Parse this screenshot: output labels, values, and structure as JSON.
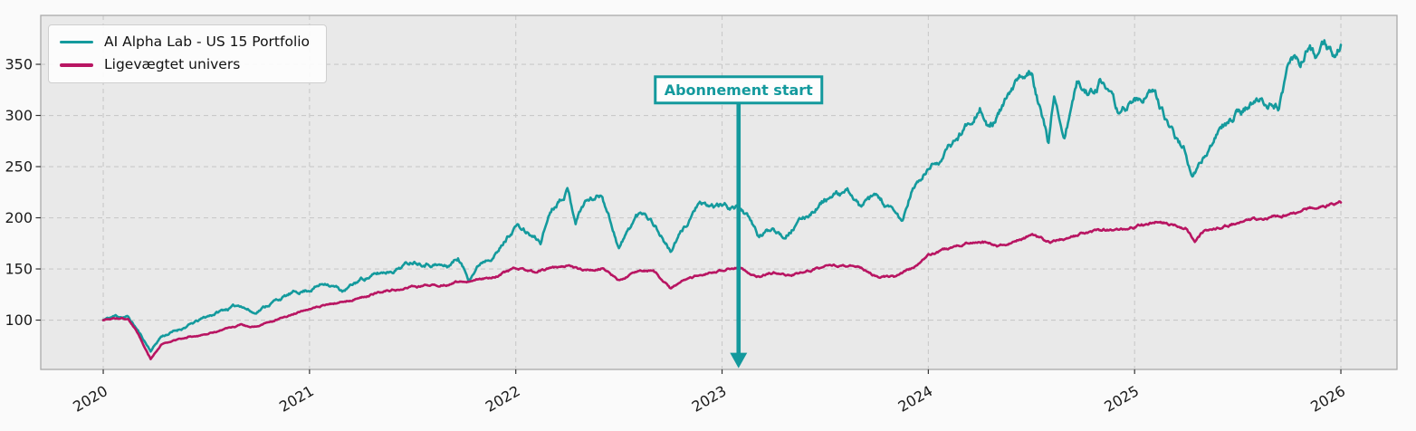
{
  "figure": {
    "background_color": "#fafafa",
    "plot_background_color": "#e9e9e9",
    "grid_color": "#c9c9c9",
    "spine_color": "#ababab",
    "tick_color": "#333333",
    "tick_label_color": "#1a1a1a"
  },
  "chart_data": {
    "type": "line",
    "title": "",
    "xlabel": "",
    "ylabel": "",
    "grid": "dashed",
    "legend_position": "upper-left",
    "xlim": [
      2019.697,
      2026.272
    ],
    "ylim": [
      51.8,
      397.8
    ],
    "x_ticks": [
      2020,
      2021,
      2022,
      2023,
      2024,
      2025,
      2026
    ],
    "x_tick_labels": [
      "2020",
      "2021",
      "2022",
      "2023",
      "2024",
      "2025",
      "2026"
    ],
    "y_ticks": [
      100,
      150,
      200,
      250,
      300,
      350
    ],
    "y_tick_labels": [
      "100",
      "150",
      "200",
      "250",
      "300",
      "350"
    ],
    "annotation": {
      "label": "Abonnement start",
      "x": 2023.08,
      "box_center_value": 325,
      "arrow_tip_value": 53,
      "color": "#13999d",
      "box_fill": "#fdfdfd"
    },
    "series": [
      {
        "name": "AI Alpha Lab - US 15 Portfolio",
        "color": "#149a9d",
        "visual_volatility": 0.018,
        "points": [
          [
            2020.0,
            100
          ],
          [
            2020.06,
            104
          ],
          [
            2020.12,
            103
          ],
          [
            2020.16,
            92
          ],
          [
            2020.23,
            70
          ],
          [
            2020.28,
            84
          ],
          [
            2020.333,
            88
          ],
          [
            2020.417,
            95
          ],
          [
            2020.5,
            103
          ],
          [
            2020.583,
            110
          ],
          [
            2020.667,
            115
          ],
          [
            2020.73,
            107
          ],
          [
            2020.833,
            119
          ],
          [
            2020.917,
            126
          ],
          [
            2021.0,
            130
          ],
          [
            2021.083,
            137
          ],
          [
            2021.167,
            128
          ],
          [
            2021.25,
            140
          ],
          [
            2021.333,
            145
          ],
          [
            2021.417,
            150
          ],
          [
            2021.5,
            158
          ],
          [
            2021.583,
            156
          ],
          [
            2021.667,
            152
          ],
          [
            2021.72,
            161
          ],
          [
            2021.77,
            141
          ],
          [
            2021.833,
            157
          ],
          [
            2021.917,
            168
          ],
          [
            2022.0,
            193
          ],
          [
            2022.083,
            181
          ],
          [
            2022.12,
            176
          ],
          [
            2022.167,
            207
          ],
          [
            2022.25,
            229
          ],
          [
            2022.29,
            198
          ],
          [
            2022.333,
            216
          ],
          [
            2022.42,
            223
          ],
          [
            2022.5,
            171
          ],
          [
            2022.583,
            201
          ],
          [
            2022.625,
            206
          ],
          [
            2022.667,
            196
          ],
          [
            2022.75,
            167
          ],
          [
            2022.79,
            181
          ],
          [
            2022.833,
            195
          ],
          [
            2022.88,
            213
          ],
          [
            2022.917,
            210
          ],
          [
            2023.0,
            212
          ],
          [
            2023.1,
            209
          ],
          [
            2023.18,
            181
          ],
          [
            2023.25,
            191
          ],
          [
            2023.3,
            183
          ],
          [
            2023.417,
            203
          ],
          [
            2023.5,
            218
          ],
          [
            2023.62,
            225
          ],
          [
            2023.667,
            211
          ],
          [
            2023.75,
            220
          ],
          [
            2023.875,
            196
          ],
          [
            2023.917,
            225
          ],
          [
            2024.0,
            247
          ],
          [
            2024.083,
            263
          ],
          [
            2024.167,
            285
          ],
          [
            2024.25,
            310
          ],
          [
            2024.29,
            286
          ],
          [
            2024.333,
            298
          ],
          [
            2024.417,
            327
          ],
          [
            2024.5,
            347
          ],
          [
            2024.583,
            272
          ],
          [
            2024.61,
            320
          ],
          [
            2024.66,
            279
          ],
          [
            2024.72,
            330
          ],
          [
            2024.78,
            322
          ],
          [
            2024.833,
            334
          ],
          [
            2024.917,
            303
          ],
          [
            2025.0,
            315
          ],
          [
            2025.1,
            321
          ],
          [
            2025.167,
            287
          ],
          [
            2025.25,
            265
          ],
          [
            2025.28,
            241
          ],
          [
            2025.333,
            257
          ],
          [
            2025.417,
            288
          ],
          [
            2025.5,
            303
          ],
          [
            2025.583,
            313
          ],
          [
            2025.667,
            312
          ],
          [
            2025.7,
            308
          ],
          [
            2025.76,
            357
          ],
          [
            2025.8,
            352
          ],
          [
            2025.85,
            368
          ],
          [
            2025.88,
            355
          ],
          [
            2025.92,
            366
          ],
          [
            2025.96,
            358
          ],
          [
            2026.0,
            369
          ]
        ]
      },
      {
        "name": "Ligevægtet univers",
        "color": "#b81562",
        "visual_volatility": 0.01,
        "points": [
          [
            2020.0,
            100
          ],
          [
            2020.06,
            102
          ],
          [
            2020.12,
            101
          ],
          [
            2020.16,
            90
          ],
          [
            2020.23,
            62
          ],
          [
            2020.28,
            76
          ],
          [
            2020.333,
            79
          ],
          [
            2020.417,
            84
          ],
          [
            2020.5,
            86
          ],
          [
            2020.583,
            91
          ],
          [
            2020.667,
            95
          ],
          [
            2020.73,
            93
          ],
          [
            2020.833,
            100
          ],
          [
            2020.917,
            106
          ],
          [
            2021.0,
            112
          ],
          [
            2021.083,
            115
          ],
          [
            2021.167,
            118
          ],
          [
            2021.25,
            122
          ],
          [
            2021.333,
            127
          ],
          [
            2021.417,
            130
          ],
          [
            2021.5,
            132
          ],
          [
            2021.583,
            134
          ],
          [
            2021.667,
            135
          ],
          [
            2021.75,
            138
          ],
          [
            2021.833,
            141
          ],
          [
            2021.917,
            144
          ],
          [
            2022.0,
            150
          ],
          [
            2022.083,
            147
          ],
          [
            2022.167,
            150
          ],
          [
            2022.25,
            153
          ],
          [
            2022.333,
            148
          ],
          [
            2022.417,
            151
          ],
          [
            2022.5,
            139
          ],
          [
            2022.583,
            147
          ],
          [
            2022.667,
            149
          ],
          [
            2022.75,
            131
          ],
          [
            2022.833,
            141
          ],
          [
            2022.917,
            146
          ],
          [
            2023.0,
            148
          ],
          [
            2023.083,
            152
          ],
          [
            2023.167,
            142
          ],
          [
            2023.25,
            146
          ],
          [
            2023.333,
            144
          ],
          [
            2023.417,
            148
          ],
          [
            2023.5,
            152
          ],
          [
            2023.583,
            154
          ],
          [
            2023.667,
            151
          ],
          [
            2023.75,
            143
          ],
          [
            2023.833,
            142
          ],
          [
            2023.917,
            150
          ],
          [
            2024.0,
            164
          ],
          [
            2024.083,
            169
          ],
          [
            2024.167,
            174
          ],
          [
            2024.25,
            178
          ],
          [
            2024.333,
            173
          ],
          [
            2024.417,
            178
          ],
          [
            2024.5,
            183
          ],
          [
            2024.583,
            175
          ],
          [
            2024.667,
            180
          ],
          [
            2024.75,
            184
          ],
          [
            2024.833,
            187
          ],
          [
            2024.917,
            189
          ],
          [
            2025.0,
            191
          ],
          [
            2025.125,
            197
          ],
          [
            2025.167,
            194
          ],
          [
            2025.25,
            190
          ],
          [
            2025.292,
            176
          ],
          [
            2025.333,
            186
          ],
          [
            2025.417,
            191
          ],
          [
            2025.5,
            195
          ],
          [
            2025.583,
            198
          ],
          [
            2025.667,
            201
          ],
          [
            2025.75,
            204
          ],
          [
            2025.833,
            208
          ],
          [
            2025.917,
            211
          ],
          [
            2026.0,
            215
          ]
        ]
      }
    ]
  }
}
